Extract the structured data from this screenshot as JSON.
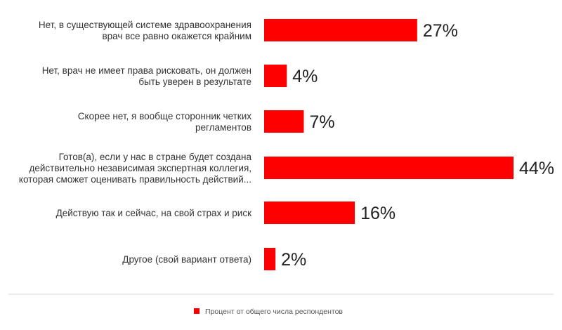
{
  "chart_data": {
    "type": "bar",
    "orientation": "horizontal",
    "categories": [
      [
        "Нет, в существующей системе здравоохранения",
        "врач все равно окажется крайним"
      ],
      [
        "Нет, врач не имеет права рисковать, он должен",
        "быть уверен в результате"
      ],
      [
        "Скорее нет, я вообще сторонник четких",
        "регламентов"
      ],
      [
        "Готов(а), если у нас в стране будет создана",
        "действительно независимая экспертная коллегия,",
        "которая сможет оценивать правильность действий..."
      ],
      [
        "Действую так и сейчас, на свой страх и риск"
      ],
      [
        "Другое (свой вариант ответа)"
      ]
    ],
    "series": [
      {
        "name": "Процент от общего числа респондентов",
        "values": [
          27,
          4,
          7,
          44,
          16,
          2
        ],
        "color": "#ff0000"
      }
    ],
    "data_labels": [
      "27%",
      "4%",
      "7%",
      "44%",
      "16%",
      "2%"
    ],
    "xlim": [
      0,
      44
    ],
    "grid": false,
    "legend_position": "bottom-center"
  }
}
